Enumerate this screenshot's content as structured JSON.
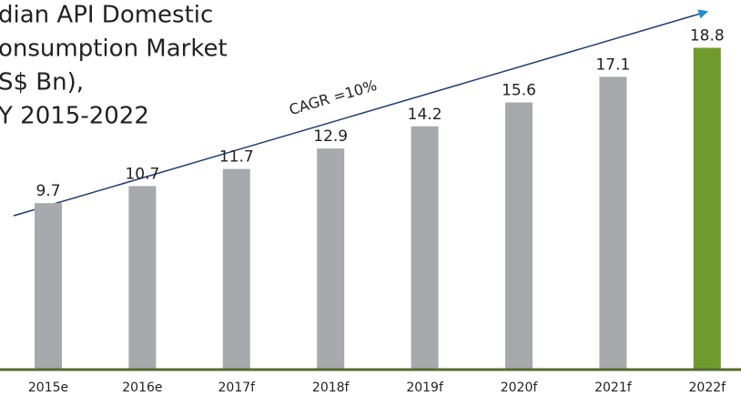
{
  "chart_data": {
    "type": "bar",
    "title": [
      "dian API Domestic",
      "onsumption Market",
      "S$ Bn),",
      "Y 2015-2022"
    ],
    "categories": [
      "2015e",
      "2016e",
      "2017f",
      "2018f",
      "2019f",
      "2020f",
      "2021f",
      "2022f"
    ],
    "values": [
      9.7,
      10.7,
      11.7,
      12.9,
      14.2,
      15.6,
      17.1,
      18.8
    ],
    "colors": [
      "#a7a9ac",
      "#a7a9ac",
      "#a7a9ac",
      "#a7a9ac",
      "#a7a9ac",
      "#a7a9ac",
      "#a7a9ac",
      "#6f9a2c"
    ],
    "ylim": [
      0,
      20
    ],
    "annotations": [
      {
        "text": "CAGR =10%"
      }
    ]
  }
}
